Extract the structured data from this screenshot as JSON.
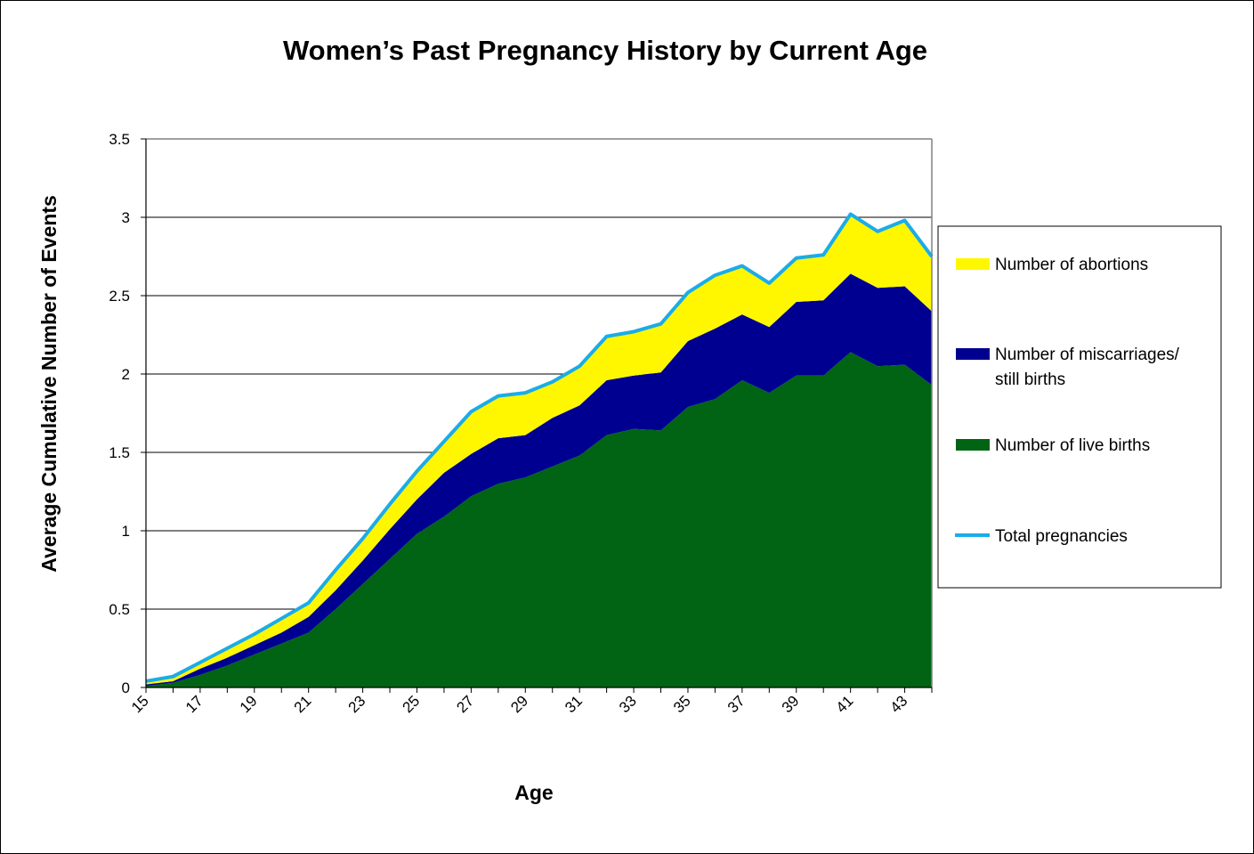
{
  "chart_data": {
    "type": "area",
    "title": "Women’s Past Pregnancy History by Current Age",
    "xlabel": "Age",
    "ylabel": "Average Cumulative Number of Events",
    "ylim": [
      0,
      3.5
    ],
    "yticks": [
      "0",
      "0.5",
      "1",
      "1.5",
      "2",
      "2.5",
      "3",
      "3.5"
    ],
    "x": [
      15,
      16,
      17,
      18,
      19,
      20,
      21,
      22,
      23,
      24,
      25,
      26,
      27,
      28,
      29,
      30,
      31,
      32,
      33,
      34,
      35,
      36,
      37,
      38,
      39,
      40,
      41,
      42,
      43,
      44
    ],
    "xtick_labels": [
      "15",
      "17",
      "19",
      "21",
      "23",
      "25",
      "27",
      "29",
      "31",
      "33",
      "35",
      "37",
      "39",
      "41",
      "43"
    ],
    "grid": "horizontal major gridlines",
    "legend_position": "right",
    "stacked": true,
    "series": [
      {
        "name": "Number of live births",
        "kind": "stacked-area",
        "color": "#006414",
        "values": [
          0.01,
          0.03,
          0.08,
          0.14,
          0.21,
          0.28,
          0.35,
          0.5,
          0.66,
          0.82,
          0.98,
          1.09,
          1.22,
          1.3,
          1.34,
          1.41,
          1.48,
          1.61,
          1.65,
          1.64,
          1.79,
          1.84,
          1.96,
          1.88,
          1.99,
          1.99,
          2.14,
          2.05,
          2.06,
          1.93
        ]
      },
      {
        "name": "Number of miscarriages/ still births",
        "kind": "stacked-area",
        "color": "#000090",
        "values": [
          0.01,
          0.01,
          0.04,
          0.05,
          0.06,
          0.07,
          0.1,
          0.12,
          0.15,
          0.19,
          0.22,
          0.28,
          0.27,
          0.29,
          0.27,
          0.31,
          0.32,
          0.35,
          0.34,
          0.37,
          0.42,
          0.45,
          0.42,
          0.42,
          0.47,
          0.48,
          0.5,
          0.5,
          0.5,
          0.47
        ]
      },
      {
        "name": "Number of abortions",
        "kind": "stacked-area",
        "color": "#FFF700",
        "values": [
          0.02,
          0.03,
          0.04,
          0.06,
          0.07,
          0.09,
          0.09,
          0.13,
          0.14,
          0.16,
          0.18,
          0.2,
          0.27,
          0.27,
          0.27,
          0.23,
          0.25,
          0.28,
          0.28,
          0.31,
          0.31,
          0.34,
          0.31,
          0.28,
          0.28,
          0.29,
          0.38,
          0.36,
          0.42,
          0.35
        ]
      },
      {
        "name": "Total pregnancies",
        "kind": "line",
        "color": "#1AACE8",
        "values": [
          0.04,
          0.07,
          0.16,
          0.25,
          0.34,
          0.44,
          0.54,
          0.75,
          0.95,
          1.17,
          1.38,
          1.57,
          1.76,
          1.86,
          1.88,
          1.95,
          2.05,
          2.24,
          2.27,
          2.32,
          2.52,
          2.63,
          2.69,
          2.58,
          2.74,
          2.76,
          3.02,
          2.91,
          2.98,
          2.75
        ]
      }
    ],
    "legend": [
      {
        "label": "Number of abortions",
        "line1": "Number of abortions",
        "line2": "",
        "color": "#FFF700",
        "swatch": "box"
      },
      {
        "label": "Number of miscarriages/ still births",
        "line1": "Number of miscarriages/",
        "line2": "still births",
        "color": "#000090",
        "swatch": "box"
      },
      {
        "label": "Number of live births",
        "line1": "Number of live births",
        "line2": "",
        "color": "#006414",
        "swatch": "box"
      },
      {
        "label": "Total pregnancies",
        "line1": "Total pregnancies",
        "line2": "",
        "color": "#1AACE8",
        "swatch": "line"
      }
    ]
  }
}
